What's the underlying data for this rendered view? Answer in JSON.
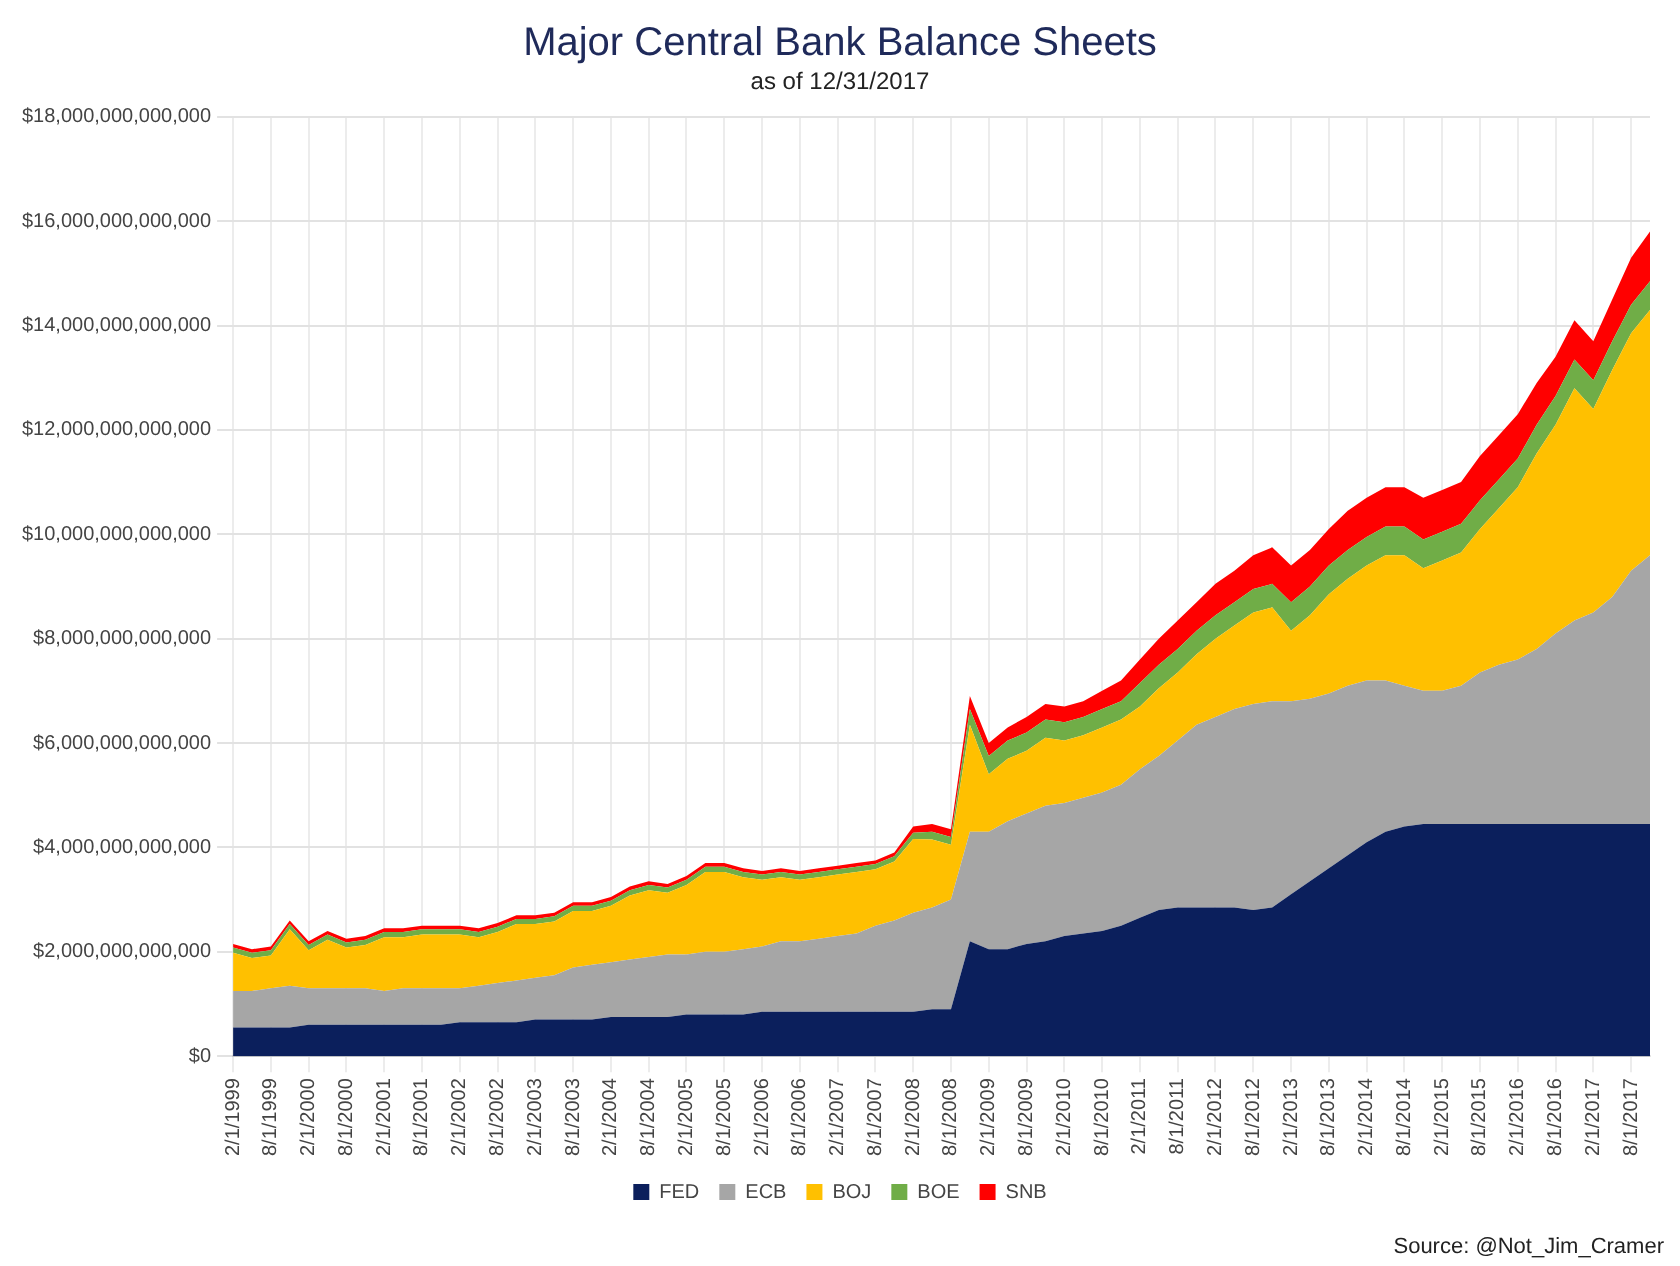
{
  "chart_data": {
    "type": "area",
    "title": "Major Central Bank Balance Sheets",
    "subtitle": "as of 12/31/2017",
    "categories": [
      "2/1/1999",
      null,
      "8/1/1999",
      null,
      "2/1/2000",
      null,
      "8/1/2000",
      null,
      "2/1/2001",
      null,
      "8/1/2001",
      null,
      "2/1/2002",
      null,
      "8/1/2002",
      null,
      "2/1/2003",
      null,
      "8/1/2003",
      null,
      "2/1/2004",
      null,
      "8/1/2004",
      null,
      "2/1/2005",
      null,
      "8/1/2005",
      null,
      "2/1/2006",
      null,
      "8/1/2006",
      null,
      "2/1/2007",
      null,
      "8/1/2007",
      null,
      "2/1/2008",
      null,
      "8/1/2008",
      null,
      "2/1/2009",
      null,
      "8/1/2009",
      null,
      "2/1/2010",
      null,
      "8/1/2010",
      null,
      "2/1/2011",
      null,
      "8/1/2011",
      null,
      "2/1/2012",
      null,
      "8/1/2012",
      null,
      "2/1/2013",
      null,
      "8/1/2013",
      null,
      "2/1/2014",
      null,
      "8/1/2014",
      null,
      "2/1/2015",
      null,
      "8/1/2015",
      null,
      "2/1/2016",
      null,
      "8/1/2016",
      null,
      "2/1/2017",
      null,
      "8/1/2017",
      null
    ],
    "stacked": true,
    "series": [
      {
        "name": "FED",
        "color": "#0b1f5c",
        "values": [
          550000000000.0,
          550000000000.0,
          550000000000.0,
          550000000000.0,
          600000000000.0,
          600000000000.0,
          600000000000.0,
          600000000000.0,
          600000000000.0,
          600000000000.0,
          600000000000.0,
          600000000000.0,
          650000000000.0,
          650000000000.0,
          650000000000.0,
          650000000000.0,
          700000000000.0,
          700000000000.0,
          700000000000.0,
          700000000000.0,
          750000000000.0,
          750000000000.0,
          750000000000.0,
          750000000000.0,
          800000000000.0,
          800000000000.0,
          800000000000.0,
          800000000000.0,
          850000000000.0,
          850000000000.0,
          850000000000.0,
          850000000000.0,
          850000000000.0,
          850000000000.0,
          850000000000.0,
          850000000000.0,
          850000000000.0,
          900000000000.0,
          900000000000.0,
          2200000000000.0,
          2050000000000.0,
          2050000000000.0,
          2150000000000.0,
          2200000000000.0,
          2300000000000.0,
          2350000000000.0,
          2400000000000.0,
          2500000000000.0,
          2650000000000.0,
          2800000000000.0,
          2850000000000.0,
          2850000000000.0,
          2850000000000.0,
          2850000000000.0,
          2800000000000.0,
          2850000000000.0,
          3100000000000.0,
          3350000000000.0,
          3600000000000.0,
          3850000000000.0,
          4100000000000.0,
          4300000000000.0,
          4400000000000.0,
          4450000000000.0,
          4450000000000.0,
          4450000000000.0,
          4450000000000.0,
          4450000000000.0,
          4450000000000.0,
          4450000000000.0,
          4450000000000.0,
          4450000000000.0,
          4450000000000.0,
          4450000000000.0,
          4450000000000.0,
          4450000000000.0
        ]
      },
      {
        "name": "ECB",
        "color": "#a6a6a6",
        "values": [
          700000000000.0,
          700000000000.0,
          750000000000.0,
          800000000000.0,
          700000000000.0,
          700000000000.0,
          700000000000.0,
          700000000000.0,
          650000000000.0,
          700000000000.0,
          700000000000.0,
          700000000000.0,
          650000000000.0,
          700000000000.0,
          750000000000.0,
          800000000000.0,
          800000000000.0,
          850000000000.0,
          1000000000000.0,
          1050000000000.0,
          1050000000000.0,
          1100000000000.0,
          1150000000000.0,
          1200000000000.0,
          1150000000000.0,
          1200000000000.0,
          1200000000000.0,
          1250000000000.0,
          1250000000000.0,
          1350000000000.0,
          1350000000000.0,
          1400000000000.0,
          1450000000000.0,
          1500000000000.0,
          1650000000000.0,
          1750000000000.0,
          1900000000000.0,
          1950000000000.0,
          2100000000000.0,
          2100000000000.0,
          2250000000000.0,
          2450000000000.0,
          2500000000000.0,
          2600000000000.0,
          2550000000000.0,
          2600000000000.0,
          2650000000000.0,
          2700000000000.0,
          2850000000000.0,
          2950000000000.0,
          3200000000000.0,
          3500000000000.0,
          3650000000000.0,
          3800000000000.0,
          3950000000000.0,
          3950000000000.0,
          3700000000000.0,
          3500000000000.0,
          3350000000000.0,
          3250000000000.0,
          3100000000000.0,
          2900000000000.0,
          2700000000000.0,
          2550000000000.0,
          2550000000000.0,
          2650000000000.0,
          2900000000000.0,
          3050000000000.0,
          3150000000000.0,
          3350000000000.0,
          3650000000000.0,
          3900000000000.0,
          4050000000000.0,
          4350000000000.0,
          4850000000000.0,
          5150000000000.0
        ]
      },
      {
        "name": "BOJ",
        "color": "#ffc000",
        "values": [
          730000000000.0,
          630000000000.0,
          630000000000.0,
          1080000000000.0,
          730000000000.0,
          930000000000.0,
          780000000000.0,
          830000000000.0,
          1030000000000.0,
          980000000000.0,
          1030000000000.0,
          1030000000000.0,
          1030000000000.0,
          930000000000.0,
          980000000000.0,
          1080000000000.0,
          1030000000000.0,
          1030000000000.0,
          1080000000000.0,
          1030000000000.0,
          1080000000000.0,
          1230000000000.0,
          1280000000000.0,
          1180000000000.0,
          1330000000000.0,
          1530000000000.0,
          1530000000000.0,
          1380000000000.0,
          1280000000000.0,
          1230000000000.0,
          1180000000000.0,
          1180000000000.0,
          1180000000000.0,
          1180000000000.0,
          1080000000000.0,
          1130000000000.0,
          1410000000000.0,
          1300000000000.0,
          1050000000000.0,
          2050000000000.0,
          1100000000000.0,
          1200000000000.0,
          1200000000000.0,
          1300000000000.0,
          1200000000000.0,
          1200000000000.0,
          1250000000000.0,
          1250000000000.0,
          1200000000000.0,
          1300000000000.0,
          1300000000000.0,
          1350000000000.0,
          1500000000000.0,
          1600000000000.0,
          1750000000000.0,
          1800000000000.0,
          1350000000000.0,
          1600000000000.0,
          1900000000000.0,
          2050000000000.0,
          2200000000000.0,
          2400000000000.0,
          2500000000000.0,
          2350000000000.0,
          2500000000000.0,
          2550000000000.0,
          2750000000000.0,
          3000000000000.0,
          3300000000000.0,
          3750000000000.0,
          4000000000000.0,
          4450000000000.0,
          3900000000000.0,
          4350000000000.0,
          4550000000000.0,
          4700000000000.0
        ]
      },
      {
        "name": "BOE",
        "color": "#70ad47",
        "values": [
          100000000000.0,
          100000000000.0,
          100000000000.0,
          100000000000.0,
          100000000000.0,
          100000000000.0,
          100000000000.0,
          100000000000.0,
          100000000000.0,
          100000000000.0,
          100000000000.0,
          100000000000.0,
          100000000000.0,
          100000000000.0,
          100000000000.0,
          100000000000.0,
          100000000000.0,
          100000000000.0,
          100000000000.0,
          100000000000.0,
          100000000000.0,
          100000000000.0,
          100000000000.0,
          100000000000.0,
          100000000000.0,
          100000000000.0,
          100000000000.0,
          100000000000.0,
          100000000000.0,
          100000000000.0,
          100000000000.0,
          100000000000.0,
          100000000000.0,
          100000000000.0,
          100000000000.0,
          100000000000.0,
          120000000000.0,
          150000000000.0,
          150000000000.0,
          300000000000.0,
          350000000000.0,
          350000000000.0,
          350000000000.0,
          350000000000.0,
          350000000000.0,
          350000000000.0,
          350000000000.0,
          350000000000.0,
          450000000000.0,
          450000000000.0,
          450000000000.0,
          450000000000.0,
          450000000000.0,
          450000000000.0,
          450000000000.0,
          450000000000.0,
          550000000000.0,
          550000000000.0,
          550000000000.0,
          550000000000.0,
          550000000000.0,
          550000000000.0,
          550000000000.0,
          550000000000.0,
          550000000000.0,
          550000000000.0,
          550000000000.0,
          550000000000.0,
          550000000000.0,
          550000000000.0,
          550000000000.0,
          550000000000.0,
          550000000000.0,
          550000000000.0,
          550000000000.0,
          550000000000.0
        ]
      },
      {
        "name": "SNB",
        "color": "#ff0000",
        "values": [
          70000000000.0,
          70000000000.0,
          70000000000.0,
          70000000000.0,
          70000000000.0,
          70000000000.0,
          70000000000.0,
          70000000000.0,
          70000000000.0,
          70000000000.0,
          70000000000.0,
          70000000000.0,
          70000000000.0,
          70000000000.0,
          70000000000.0,
          70000000000.0,
          70000000000.0,
          70000000000.0,
          70000000000.0,
          70000000000.0,
          70000000000.0,
          70000000000.0,
          70000000000.0,
          70000000000.0,
          70000000000.0,
          70000000000.0,
          70000000000.0,
          70000000000.0,
          70000000000.0,
          70000000000.0,
          70000000000.0,
          70000000000.0,
          70000000000.0,
          70000000000.0,
          70000000000.0,
          70000000000.0,
          120000000000.0,
          150000000000.0,
          150000000000.0,
          250000000000.0,
          250000000000.0,
          250000000000.0,
          300000000000.0,
          300000000000.0,
          300000000000.0,
          300000000000.0,
          350000000000.0,
          400000000000.0,
          450000000000.0,
          500000000000.0,
          550000000000.0,
          550000000000.0,
          600000000000.0,
          600000000000.0,
          650000000000.0,
          700000000000.0,
          700000000000.0,
          700000000000.0,
          700000000000.0,
          750000000000.0,
          750000000000.0,
          750000000000.0,
          750000000000.0,
          800000000000.0,
          800000000000.0,
          800000000000.0,
          850000000000.0,
          850000000000.0,
          850000000000.0,
          800000000000.0,
          750000000000.0,
          750000000000.0,
          750000000000.0,
          800000000000.0,
          900000000000.0,
          950000000000.0
        ]
      }
    ],
    "ylim": [
      0,
      18000000000000.0
    ],
    "yticks": [
      {
        "value": 0,
        "label": "$0"
      },
      {
        "value": 2000000000000.0,
        "label": "$2,000,000,000,000"
      },
      {
        "value": 4000000000000.0,
        "label": "$4,000,000,000,000"
      },
      {
        "value": 6000000000000.0,
        "label": "$6,000,000,000,000"
      },
      {
        "value": 8000000000000.0,
        "label": "$8,000,000,000,000"
      },
      {
        "value": 10000000000000.0,
        "label": "$10,000,000,000,000"
      },
      {
        "value": 12000000000000.0,
        "label": "$12,000,000,000,000"
      },
      {
        "value": 14000000000000.0,
        "label": "$14,000,000,000,000"
      },
      {
        "value": 16000000000000.0,
        "label": "$16,000,000,000,000"
      },
      {
        "value": 18000000000000.0,
        "label": "$18,000,000,000,000"
      }
    ],
    "grid": true,
    "legend": "bottom",
    "annotations": [
      "Source: @Not_Jim_Cramer"
    ]
  }
}
